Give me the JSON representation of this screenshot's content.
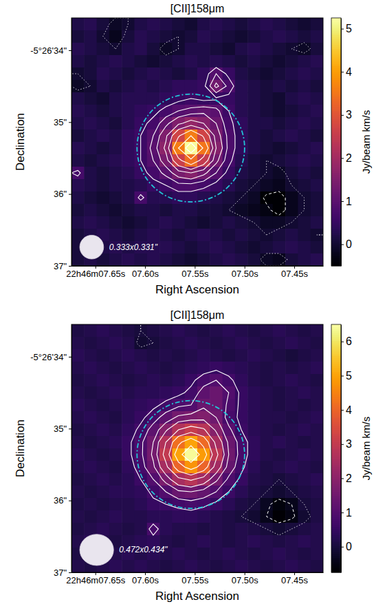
{
  "chart_data": [
    {
      "type": "heatmap",
      "title": "[CII]158μm",
      "x_label": "Right Ascension",
      "y_label": "Declination",
      "xlim": [
        7.674,
        7.421
      ],
      "xticks": [
        {
          "value": 7.65,
          "label": "22h46m07.65s"
        },
        {
          "value": 7.6,
          "label": "07.60s"
        },
        {
          "value": 7.55,
          "label": "07.55s"
        },
        {
          "value": 7.5,
          "label": "07.50s"
        },
        {
          "value": 7.45,
          "label": "07.45s"
        }
      ],
      "ylim": [
        33.55,
        37.0
      ],
      "yticks": [
        {
          "value": 34,
          "label": "-5°26'34\""
        },
        {
          "value": 35,
          "label": "35\""
        },
        {
          "value": 36,
          "label": "36\""
        },
        {
          "value": 37,
          "label": "37\""
        }
      ],
      "color": "inferno",
      "zlim": [
        -0.5,
        5.25
      ],
      "zticks": [
        0,
        1,
        2,
        3,
        4,
        5
      ],
      "colorbar_label": "Jy/beam km/s",
      "cells": [
        [
          0.2,
          0.3,
          0.1,
          -0.1,
          0.0,
          0.2,
          0.3,
          0.2,
          0.1,
          0.0,
          0.2,
          0.3,
          0.2,
          0.1,
          0.2,
          0.3,
          0.2,
          0.1,
          0.0,
          0.1
        ],
        [
          0.1,
          0.2,
          0.0,
          -0.2,
          0.1,
          0.3,
          0.2,
          0.1,
          0.0,
          0.1,
          0.3,
          0.2,
          0.1,
          0.0,
          0.1,
          0.2,
          0.3,
          0.2,
          0.1,
          0.2
        ],
        [
          0.3,
          0.2,
          0.1,
          0.0,
          0.2,
          0.3,
          0.1,
          -0.1,
          0.0,
          0.2,
          0.2,
          0.1,
          0.0,
          0.2,
          0.3,
          0.2,
          0.1,
          0.0,
          -0.1,
          0.1
        ],
        [
          0.2,
          0.1,
          0.2,
          0.3,
          0.2,
          0.1,
          0.0,
          0.1,
          0.2,
          0.3,
          0.2,
          0.3,
          0.2,
          0.1,
          0.2,
          0.1,
          0.0,
          0.1,
          0.2,
          0.3
        ],
        [
          0.0,
          0.1,
          0.3,
          0.2,
          0.1,
          0.2,
          0.3,
          0.2,
          0.1,
          0.2,
          0.4,
          0.9,
          0.5,
          0.2,
          0.1,
          0.0,
          0.1,
          0.2,
          0.3,
          0.2
        ],
        [
          -0.1,
          0.0,
          0.2,
          0.1,
          0.2,
          0.3,
          0.2,
          0.3,
          0.4,
          0.4,
          0.5,
          1.3,
          0.8,
          0.3,
          0.2,
          0.1,
          0.2,
          0.1,
          0.2,
          0.1
        ],
        [
          0.2,
          0.1,
          0.0,
          0.2,
          0.3,
          0.3,
          0.3,
          0.4,
          0.5,
          0.6,
          0.5,
          0.55,
          0.5,
          0.3,
          0.2,
          0.1,
          0.0,
          0.2,
          0.3,
          0.2
        ],
        [
          0.3,
          0.2,
          0.1,
          0.2,
          0.3,
          0.4,
          0.5,
          0.7,
          0.9,
          1.0,
          1.1,
          1.0,
          0.6,
          0.3,
          0.2,
          0.1,
          0.0,
          0.1,
          0.2,
          0.3
        ],
        [
          0.2,
          0.3,
          0.2,
          0.1,
          0.3,
          0.5,
          0.7,
          1.1,
          1.5,
          1.8,
          1.6,
          1.2,
          0.7,
          0.4,
          0.2,
          0.2,
          0.1,
          0.2,
          0.3,
          0.2
        ],
        [
          0.1,
          0.2,
          0.3,
          0.2,
          0.4,
          0.6,
          0.9,
          1.5,
          2.7,
          3.6,
          2.7,
          1.4,
          0.8,
          0.4,
          0.2,
          0.1,
          0.2,
          0.3,
          0.2,
          0.1
        ],
        [
          0.3,
          0.2,
          0.1,
          0.2,
          0.4,
          0.6,
          1.0,
          1.7,
          3.6,
          5.2,
          3.5,
          1.6,
          0.8,
          0.4,
          0.2,
          0.1,
          0.0,
          0.1,
          0.2,
          0.3
        ],
        [
          0.2,
          0.1,
          0.2,
          0.3,
          0.4,
          0.6,
          0.9,
          1.4,
          2.6,
          3.4,
          2.5,
          1.3,
          0.7,
          0.3,
          0.1,
          0.0,
          0.1,
          0.2,
          0.3,
          0.2
        ],
        [
          0.7,
          0.2,
          0.1,
          0.2,
          0.3,
          0.5,
          0.7,
          1.0,
          1.4,
          1.6,
          1.3,
          0.9,
          0.5,
          0.2,
          0.1,
          0.0,
          -0.1,
          0.1,
          0.2,
          0.1
        ],
        [
          0.3,
          0.2,
          0.1,
          0.2,
          0.2,
          0.3,
          0.5,
          0.6,
          0.8,
          0.8,
          0.7,
          0.5,
          0.3,
          0.1,
          0.0,
          -0.1,
          -0.2,
          0.0,
          0.1,
          0.2
        ],
        [
          0.2,
          0.1,
          0.0,
          0.1,
          0.2,
          0.7,
          0.3,
          0.3,
          0.4,
          0.4,
          0.3,
          0.2,
          0.1,
          0.0,
          -0.1,
          -0.5,
          -0.6,
          -0.2,
          0.0,
          0.1
        ],
        [
          0.1,
          0.2,
          0.1,
          0.0,
          0.1,
          0.2,
          0.2,
          0.1,
          0.2,
          0.2,
          0.1,
          0.1,
          0.0,
          -0.1,
          -0.2,
          -0.3,
          -0.6,
          -0.2,
          0.0,
          0.1
        ],
        [
          0.2,
          0.3,
          0.2,
          0.1,
          0.0,
          0.1,
          0.2,
          0.3,
          0.2,
          0.1,
          0.0,
          0.1,
          0.2,
          0.1,
          0.0,
          -0.1,
          -0.1,
          0.0,
          0.1,
          0.2
        ],
        [
          0.1,
          0.2,
          0.3,
          0.2,
          0.1,
          0.2,
          0.3,
          0.2,
          0.1,
          0.2,
          0.3,
          0.2,
          0.1,
          0.2,
          0.1,
          0.0,
          0.1,
          0.2,
          0.1,
          0.0
        ],
        [
          0.1,
          0.1,
          0.2,
          0.3,
          0.2,
          0.3,
          0.3,
          0.3,
          0.2,
          0.1,
          0.2,
          0.3,
          0.2,
          0.1,
          0.0,
          0.1,
          0.2,
          0.3,
          0.2,
          0.1
        ],
        [
          0.1,
          0.2,
          0.1,
          0.2,
          0.3,
          0.2,
          0.3,
          0.2,
          0.1,
          0.0,
          0.1,
          0.2,
          0.3,
          0.2,
          0.1,
          -0.1,
          -0.2,
          0.1,
          0.2,
          0.3
        ]
      ],
      "contours": [
        {
          "levels": [
            -0.4
          ],
          "line_style": "dashed",
          "color": "#ffffff"
        },
        {
          "levels": [
            0
          ],
          "line_style": "dotted",
          "color": "#ffffff"
        },
        {
          "levels": [
            0.6,
            0.9,
            1.2,
            1.6,
            2.1,
            2.8,
            3.6,
            4.5
          ],
          "line_style": "solid",
          "color": "#ffffff"
        }
      ],
      "aperture": {
        "center": [
          7.554,
          35.36
        ],
        "radius": 0.75,
        "color": "#22c5d6",
        "line_style": "dashdot"
      },
      "beam": {
        "major": 0.333,
        "minor": 0.331,
        "label": "0.333x0.331\""
      }
    },
    {
      "type": "heatmap",
      "title": "[CII]158μm",
      "x_label": "Right Ascension",
      "y_label": "Declination",
      "xlim": [
        7.674,
        7.421
      ],
      "xticks": [
        {
          "value": 7.65,
          "label": "22h46m07.65s"
        },
        {
          "value": 7.6,
          "label": "07.60s"
        },
        {
          "value": 7.55,
          "label": "07.55s"
        },
        {
          "value": 7.5,
          "label": "07.50s"
        },
        {
          "value": 7.45,
          "label": "07.45s"
        }
      ],
      "ylim": [
        33.55,
        37.0
      ],
      "yticks": [
        {
          "value": 34,
          "label": "-5°26'34\""
        },
        {
          "value": 35,
          "label": "35\""
        },
        {
          "value": 36,
          "label": "36\""
        },
        {
          "value": 37,
          "label": "37\""
        }
      ],
      "color": "inferno",
      "zlim": [
        -0.75,
        6.5
      ],
      "zticks": [
        0,
        1,
        2,
        3,
        4,
        5,
        6
      ],
      "colorbar_label": "Jy/beam km/s",
      "cells": [
        [
          0.1,
          0.2,
          0.3,
          0.2,
          0.1,
          0.0,
          0.1,
          0.2,
          0.3,
          0.2,
          0.1,
          0.2,
          0.3,
          0.2,
          0.1,
          0.2,
          0.3,
          0.2,
          0.1,
          0.2
        ],
        [
          0.2,
          0.1,
          0.2,
          0.3,
          0.2,
          -0.1,
          0.0,
          0.1,
          0.2,
          0.3,
          0.2,
          0.1,
          0.2,
          0.3,
          0.2,
          0.1,
          0.2,
          0.3,
          0.2,
          0.1
        ],
        [
          0.3,
          0.2,
          0.1,
          0.2,
          0.3,
          0.2,
          0.1,
          0.2,
          0.1,
          0.2,
          0.3,
          0.2,
          0.1,
          0.2,
          0.3,
          0.2,
          0.1,
          0.0,
          0.1,
          0.2
        ],
        [
          0.2,
          0.3,
          0.2,
          0.1,
          0.2,
          0.3,
          0.2,
          0.1,
          0.2,
          0.3,
          0.4,
          0.5,
          0.4,
          0.3,
          0.2,
          0.1,
          0.2,
          0.1,
          0.2,
          0.3
        ],
        [
          0.1,
          0.2,
          0.3,
          0.2,
          0.1,
          0.2,
          0.3,
          0.2,
          0.3,
          0.5,
          0.8,
          1.0,
          0.7,
          0.4,
          0.2,
          0.1,
          0.2,
          0.3,
          0.2,
          0.1
        ],
        [
          0.2,
          0.1,
          0.2,
          0.3,
          0.2,
          0.3,
          0.3,
          0.4,
          0.5,
          0.7,
          1.2,
          1.4,
          1.0,
          0.5,
          0.3,
          0.2,
          0.1,
          0.2,
          0.3,
          0.2
        ],
        [
          0.3,
          0.2,
          0.1,
          0.2,
          0.3,
          0.4,
          0.5,
          0.7,
          0.9,
          1.0,
          1.4,
          1.4,
          0.9,
          0.5,
          0.3,
          0.2,
          0.1,
          0.2,
          0.1,
          0.2
        ],
        [
          0.2,
          0.3,
          0.2,
          0.1,
          0.3,
          0.5,
          0.8,
          1.2,
          1.6,
          1.7,
          1.8,
          1.5,
          0.8,
          0.5,
          0.3,
          0.2,
          0.2,
          0.1,
          0.2,
          0.3
        ],
        [
          0.1,
          0.2,
          0.3,
          0.2,
          0.4,
          0.7,
          1.2,
          1.9,
          2.7,
          3.1,
          2.8,
          1.9,
          1.1,
          0.6,
          0.3,
          0.2,
          0.1,
          0.2,
          0.3,
          0.2
        ],
        [
          0.2,
          0.1,
          0.2,
          0.3,
          0.5,
          0.9,
          1.5,
          2.7,
          4.2,
          5.0,
          4.1,
          2.5,
          1.4,
          0.8,
          0.4,
          0.2,
          0.3,
          0.2,
          0.1,
          0.2
        ],
        [
          0.3,
          0.2,
          0.1,
          0.2,
          0.5,
          0.9,
          1.6,
          3.0,
          5.0,
          6.4,
          4.9,
          2.9,
          1.5,
          0.8,
          0.4,
          0.2,
          0.1,
          0.2,
          0.3,
          0.2
        ],
        [
          0.2,
          0.3,
          0.2,
          0.1,
          0.4,
          0.8,
          1.4,
          2.5,
          4.0,
          4.8,
          4.0,
          2.4,
          1.3,
          0.7,
          0.3,
          0.1,
          0.2,
          0.3,
          0.2,
          0.1
        ],
        [
          0.1,
          0.2,
          0.3,
          0.2,
          0.3,
          0.6,
          1.0,
          1.7,
          2.5,
          2.8,
          2.4,
          1.6,
          0.9,
          0.5,
          0.2,
          0.1,
          0.0,
          0.1,
          0.2,
          0.3
        ],
        [
          0.2,
          0.1,
          0.2,
          0.3,
          0.3,
          0.4,
          0.7,
          1.0,
          1.4,
          1.5,
          1.3,
          1.0,
          0.6,
          0.3,
          0.1,
          0.0,
          -0.1,
          0.0,
          0.1,
          0.2
        ],
        [
          0.1,
          0.2,
          0.1,
          0.2,
          0.2,
          0.3,
          0.5,
          0.6,
          0.7,
          0.8,
          0.7,
          0.5,
          0.3,
          0.1,
          0.0,
          -0.3,
          -0.6,
          -0.4,
          0.0,
          0.1
        ],
        [
          0.2,
          0.1,
          0.2,
          0.3,
          0.2,
          0.2,
          0.3,
          0.3,
          0.4,
          0.4,
          0.3,
          0.2,
          0.1,
          0.0,
          -0.1,
          -0.4,
          -0.7,
          -0.5,
          -0.1,
          0.1
        ],
        [
          0.1,
          0.2,
          0.3,
          0.2,
          0.1,
          0.2,
          0.8,
          0.3,
          0.2,
          0.2,
          0.1,
          0.2,
          0.1,
          0.2,
          0.1,
          0.0,
          -0.1,
          0.0,
          0.1,
          0.2
        ],
        [
          0.2,
          0.3,
          0.2,
          0.1,
          0.2,
          0.3,
          0.4,
          0.2,
          0.1,
          0.2,
          0.3,
          0.2,
          0.1,
          0.2,
          0.3,
          0.2,
          0.1,
          0.2,
          0.3,
          0.2
        ],
        [
          0.1,
          0.2,
          0.3,
          0.2,
          0.3,
          0.2,
          0.3,
          0.2,
          0.3,
          0.2,
          0.1,
          0.2,
          0.3,
          0.2,
          0.1,
          0.2,
          0.3,
          0.2,
          0.1,
          0.2
        ],
        [
          0.2,
          0.1,
          0.2,
          0.3,
          0.2,
          0.3,
          0.2,
          0.1,
          0.2,
          0.3,
          0.2,
          0.1,
          0.2,
          0.3,
          0.2,
          0.1,
          0.2,
          0.3,
          0.2,
          0.1
        ]
      ],
      "contours": [
        {
          "levels": [
            -0.4
          ],
          "line_style": "dashed",
          "color": "#ffffff"
        },
        {
          "levels": [
            0
          ],
          "line_style": "dotted",
          "color": "#ffffff"
        },
        {
          "levels": [
            0.6,
            1.0,
            1.5,
            2.0,
            2.7,
            3.5,
            4.4,
            5.4
          ],
          "line_style": "solid",
          "color": "#ffffff"
        }
      ],
      "aperture": {
        "center": [
          7.554,
          35.36
        ],
        "radius": 0.75,
        "color": "#22c5d6",
        "line_style": "dashdot"
      },
      "beam": {
        "major": 0.472,
        "minor": 0.434,
        "label": "0.472x0.434\""
      }
    }
  ]
}
